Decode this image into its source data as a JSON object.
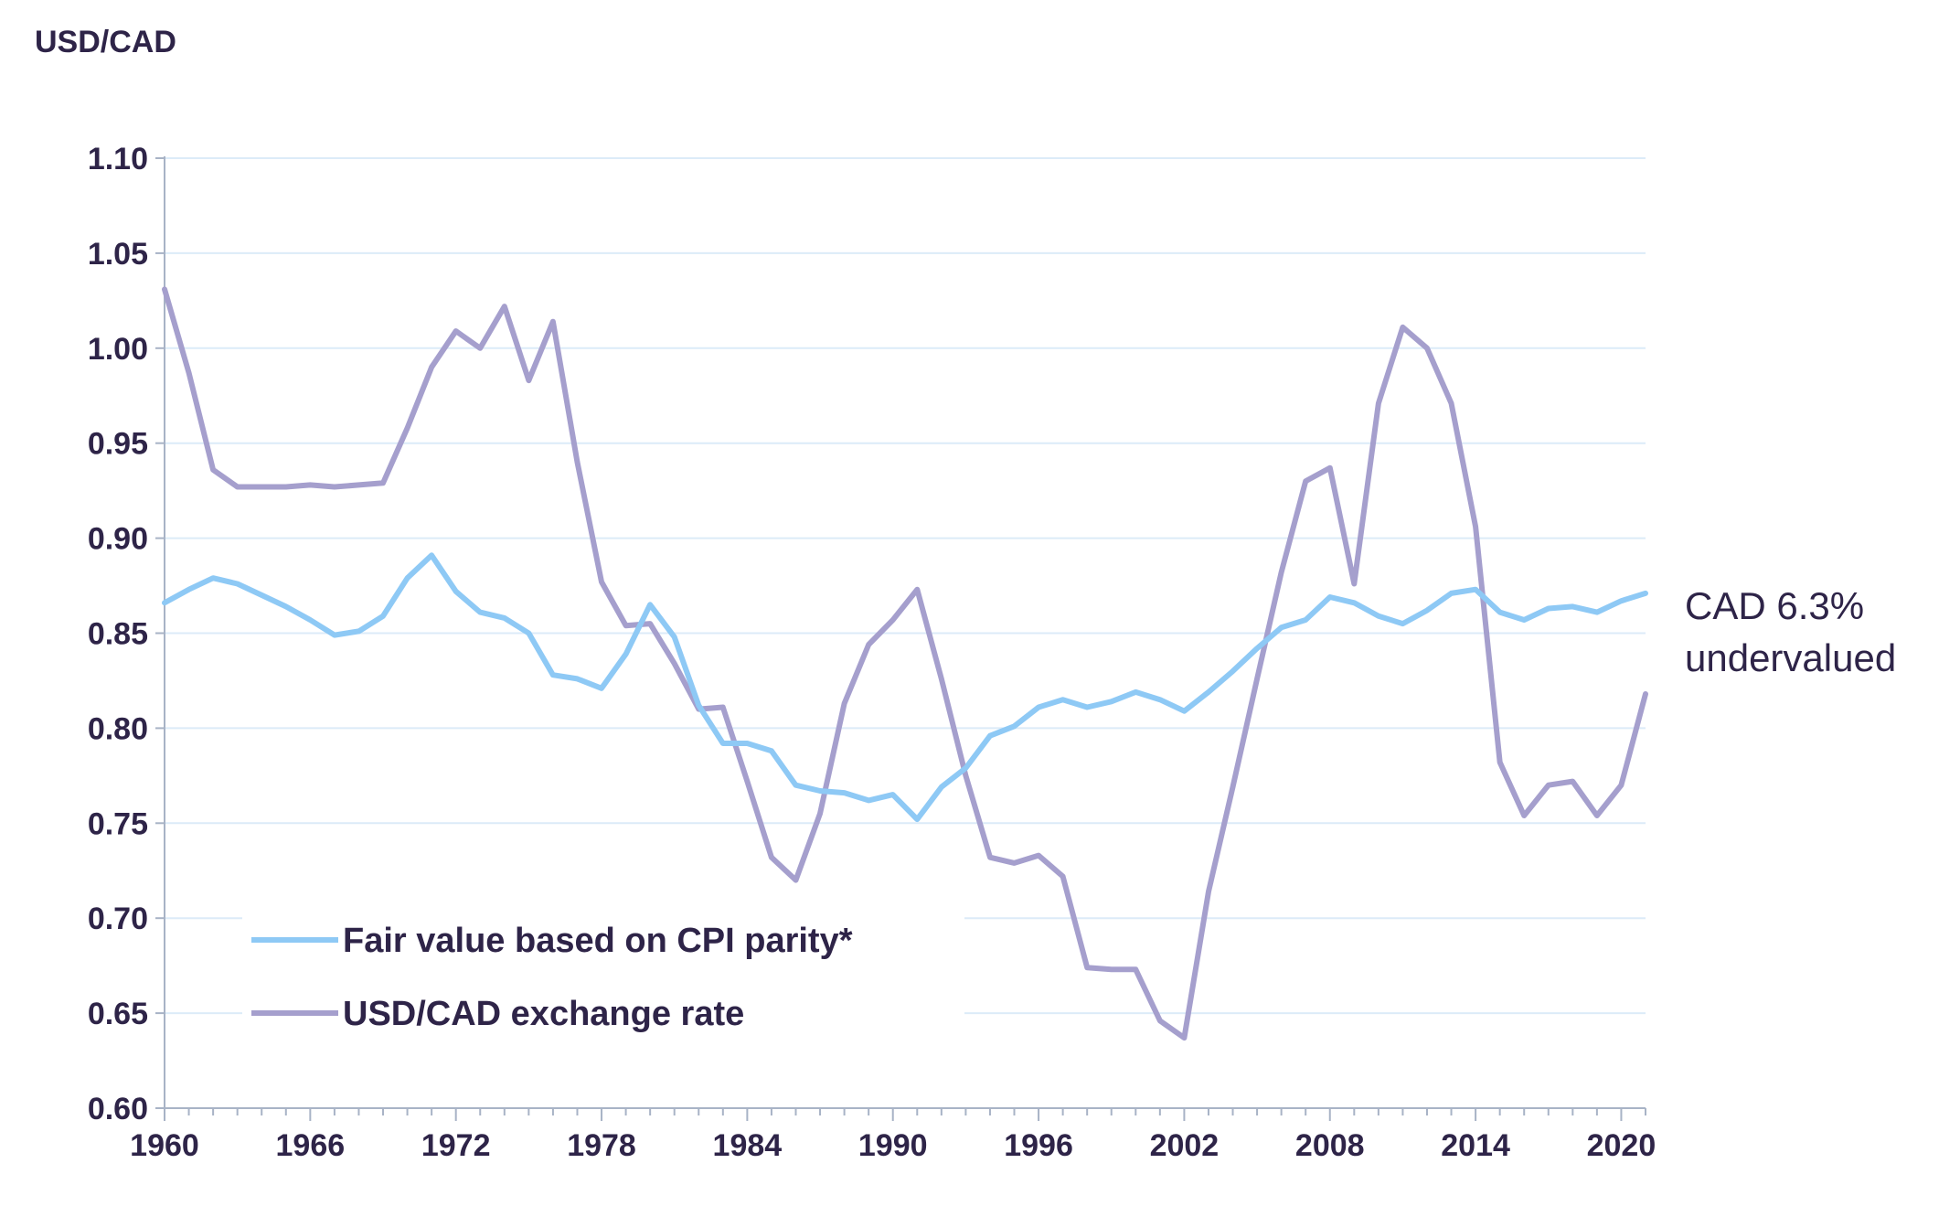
{
  "chart_data": {
    "type": "line",
    "title": "",
    "ylabel": "USD/CAD",
    "xlabel": "",
    "xlim": [
      1960,
      2021
    ],
    "ylim": [
      0.6,
      1.1
    ],
    "yticks": [
      "0.60",
      "0.65",
      "0.70",
      "0.75",
      "0.80",
      "0.85",
      "0.90",
      "0.95",
      "1.00",
      "1.05",
      "1.10"
    ],
    "xticks": [
      "1960",
      "1966",
      "1972",
      "1978",
      "1984",
      "1990",
      "1996",
      "2002",
      "2008",
      "2014",
      "2020"
    ],
    "grid": true,
    "legend_position": "bottom-left",
    "x": [
      1960,
      1961,
      1962,
      1963,
      1964,
      1965,
      1966,
      1967,
      1968,
      1969,
      1970,
      1971,
      1972,
      1973,
      1974,
      1975,
      1976,
      1977,
      1978,
      1979,
      1980,
      1981,
      1982,
      1983,
      1984,
      1985,
      1986,
      1987,
      1988,
      1989,
      1990,
      1991,
      1992,
      1993,
      1994,
      1995,
      1996,
      1997,
      1998,
      1999,
      2000,
      2001,
      2002,
      2003,
      2004,
      2005,
      2006,
      2007,
      2008,
      2009,
      2010,
      2011,
      2012,
      2013,
      2014,
      2015,
      2016,
      2017,
      2018,
      2019,
      2020,
      2021
    ],
    "series": [
      {
        "name": "Fair value based on CPI parity*",
        "color": "#8ec9f5",
        "values": [
          0.866,
          0.873,
          0.879,
          0.876,
          0.87,
          0.864,
          0.857,
          0.849,
          0.851,
          0.859,
          0.879,
          0.891,
          0.872,
          0.861,
          0.858,
          0.85,
          0.828,
          0.826,
          0.821,
          0.839,
          0.865,
          0.848,
          0.812,
          0.792,
          0.792,
          0.788,
          0.77,
          0.767,
          0.766,
          0.762,
          0.765,
          0.752,
          0.769,
          0.779,
          0.796,
          0.801,
          0.811,
          0.815,
          0.811,
          0.814,
          0.819,
          0.815,
          0.809,
          0.819,
          0.83,
          0.842,
          0.853,
          0.857,
          0.869,
          0.866,
          0.859,
          0.855,
          0.862,
          0.871,
          0.873,
          0.861,
          0.857,
          0.863,
          0.864,
          0.861,
          0.867,
          0.871
        ]
      },
      {
        "name": "USD/CAD exchange rate",
        "color": "#a59fcd",
        "values": [
          1.031,
          0.987,
          0.936,
          0.927,
          0.927,
          0.927,
          0.928,
          0.927,
          0.928,
          0.929,
          0.958,
          0.99,
          1.009,
          1.0,
          1.022,
          0.983,
          1.014,
          0.94,
          0.877,
          0.854,
          0.855,
          0.834,
          0.81,
          0.811,
          0.772,
          0.732,
          0.72,
          0.755,
          0.813,
          0.844,
          0.857,
          0.873,
          0.826,
          0.775,
          0.732,
          0.729,
          0.733,
          0.722,
          0.674,
          0.673,
          0.673,
          0.646,
          0.637,
          0.714,
          0.769,
          0.826,
          0.882,
          0.93,
          0.937,
          0.876,
          0.971,
          1.011,
          1.0,
          0.971,
          0.906,
          0.782,
          0.754,
          0.77,
          0.772,
          0.754,
          0.77,
          0.818
        ]
      }
    ],
    "annotation": {
      "line1": "CAD 6.3%",
      "line2": "undervalued"
    }
  }
}
